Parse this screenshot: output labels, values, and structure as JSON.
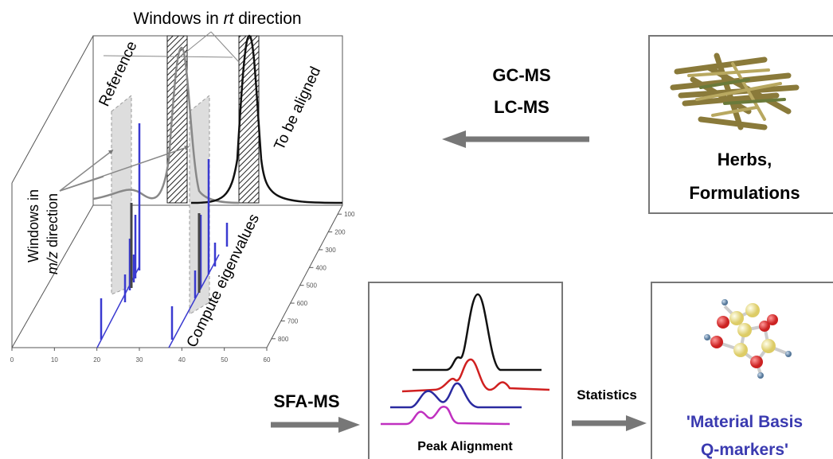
{
  "plot3d": {
    "title": {
      "before": "Windows in ",
      "italic": "rt",
      "after": " direction"
    },
    "reference_label": "Reference",
    "aligned_label": "To be aligned",
    "compute_label": "Compute eigenvalues",
    "mz_label": {
      "line1": "Windows in",
      "italic": "m/z",
      "after": " direction"
    },
    "x_ticks": [
      0,
      10,
      20,
      30,
      40,
      50,
      60
    ],
    "depth_ticks": [
      100,
      200,
      300,
      400,
      500,
      600,
      700,
      800
    ]
  },
  "methods": {
    "gc": "GC-MS",
    "lc": "LC-MS"
  },
  "herbs": {
    "line1": "Herbs,",
    "line2": "Formulations"
  },
  "sfa": "SFA-MS",
  "alignment": {
    "label": "Peak Alignment"
  },
  "statistics": "Statistics",
  "result": {
    "line1": "'Material Basis",
    "line2": "Q-markers'"
  }
}
